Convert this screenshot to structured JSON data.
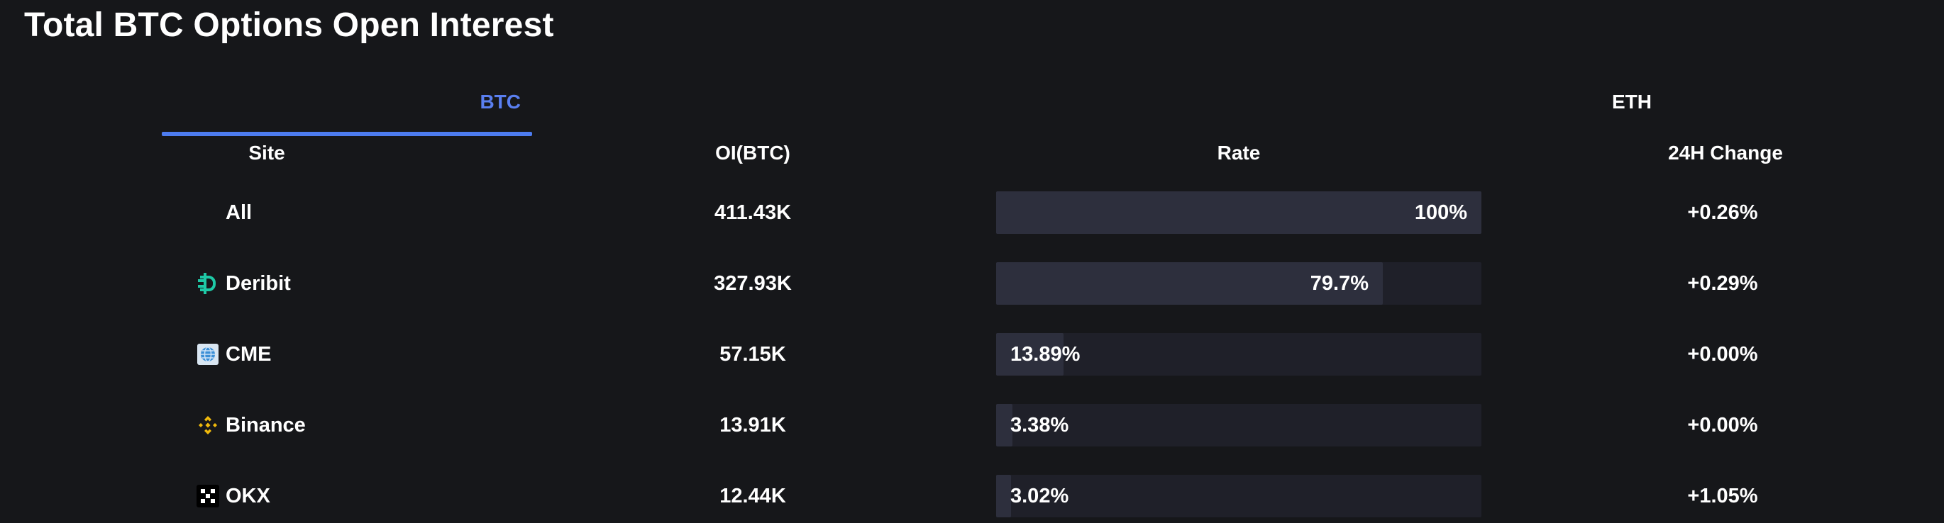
{
  "page": {
    "title": "Total BTC Options Open Interest"
  },
  "tabs": [
    {
      "label": "BTC",
      "active": true
    },
    {
      "label": "ETH",
      "active": false
    }
  ],
  "colors": {
    "background": "#16171a",
    "accent": "#4d7cf0",
    "bar_track": "#1f2029",
    "bar_fill": "#2d2f3d",
    "deribit": "#1ec9a6",
    "binance": "#f0b90b",
    "cme": "#3b8fd6",
    "okx": "#000000"
  },
  "table": {
    "columns": {
      "site": "Site",
      "oi": "OI(BTC)",
      "rate": "Rate",
      "change": "24H Change"
    },
    "rows": [
      {
        "site": "All",
        "icon": "",
        "oi": "411.43K",
        "rate_label": "100%",
        "rate": 100,
        "change": "+0.26%"
      },
      {
        "site": "Deribit",
        "icon": "deribit-logo-icon",
        "oi": "327.93K",
        "rate_label": "79.7%",
        "rate": 79.7,
        "change": "+0.29%"
      },
      {
        "site": "CME",
        "icon": "cme-logo-icon",
        "oi": "57.15K",
        "rate_label": "13.89%",
        "rate": 13.89,
        "change": "+0.00%"
      },
      {
        "site": "Binance",
        "icon": "binance-logo-icon",
        "oi": "13.91K",
        "rate_label": "3.38%",
        "rate": 3.38,
        "change": "+0.00%"
      },
      {
        "site": "OKX",
        "icon": "okx-logo-icon",
        "oi": "12.44K",
        "rate_label": "3.02%",
        "rate": 3.02,
        "change": "+1.05%"
      }
    ]
  }
}
